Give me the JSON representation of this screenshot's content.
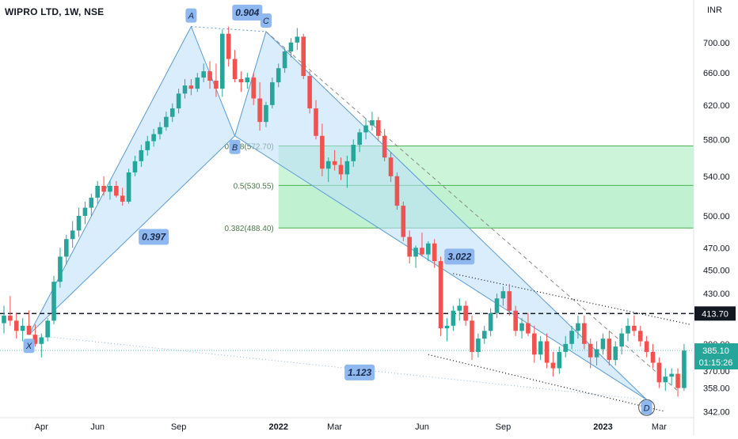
{
  "header": {
    "symbol_title": "WIPRO LTD, 1W, NSE",
    "currency": "INR"
  },
  "chart_data": {
    "type": "candlestick",
    "title": "WIPRO LTD, 1W, NSE",
    "price_axis": {
      "scale": "log",
      "unit": "INR",
      "range": [
        338,
        735
      ],
      "ticks": [
        "700.00",
        "660.00",
        "620.00",
        "580.00",
        "540.00",
        "500.00",
        "470.00",
        "450.00",
        "430.00",
        "390.00",
        "370.00",
        "358.00",
        "342.00"
      ]
    },
    "time_axis": {
      "labels": [
        {
          "label": "Apr",
          "week": 6
        },
        {
          "label": "Jun",
          "week": 15
        },
        {
          "label": "Sep",
          "week": 28
        },
        {
          "label": "2022",
          "week": 44
        },
        {
          "label": "Mar",
          "week": 53
        },
        {
          "label": "Jun",
          "week": 67
        },
        {
          "label": "Sep",
          "week": 80
        },
        {
          "label": "2023",
          "week": 96
        },
        {
          "label": "Mar",
          "week": 105
        }
      ]
    },
    "candles": [
      [
        406,
        420,
        398,
        412
      ],
      [
        412,
        428,
        404,
        408
      ],
      [
        408,
        414,
        394,
        400
      ],
      [
        400,
        410,
        392,
        404
      ],
      [
        404,
        416,
        398,
        397
      ],
      [
        397,
        405,
        388,
        390
      ],
      [
        390,
        398,
        380,
        395
      ],
      [
        395,
        410,
        392,
        408
      ],
      [
        408,
        445,
        405,
        440
      ],
      [
        440,
        470,
        435,
        462
      ],
      [
        462,
        482,
        455,
        478
      ],
      [
        478,
        495,
        470,
        486
      ],
      [
        486,
        508,
        480,
        500
      ],
      [
        500,
        514,
        492,
        508
      ],
      [
        508,
        522,
        500,
        518
      ],
      [
        518,
        535,
        512,
        530
      ],
      [
        530,
        540,
        520,
        524
      ],
      [
        524,
        536,
        516,
        530
      ],
      [
        530,
        535,
        518,
        520
      ],
      [
        520,
        528,
        510,
        514
      ],
      [
        514,
        548,
        512,
        544
      ],
      [
        544,
        562,
        540,
        556
      ],
      [
        556,
        574,
        550,
        568
      ],
      [
        568,
        584,
        562,
        578
      ],
      [
        578,
        592,
        572,
        586
      ],
      [
        586,
        600,
        580,
        594
      ],
      [
        594,
        612,
        590,
        606
      ],
      [
        606,
        622,
        600,
        616
      ],
      [
        616,
        640,
        610,
        634
      ],
      [
        634,
        652,
        628,
        644
      ],
      [
        644,
        652,
        632,
        640
      ],
      [
        640,
        660,
        636,
        654
      ],
      [
        654,
        672,
        648,
        662
      ],
      [
        662,
        675,
        640,
        650
      ],
      [
        650,
        672,
        630,
        640
      ],
      [
        640,
        718,
        630,
        712
      ],
      [
        712,
        722,
        668,
        678
      ],
      [
        678,
        690,
        648,
        652
      ],
      [
        652,
        662,
        636,
        648
      ],
      [
        648,
        660,
        640,
        654
      ],
      [
        654,
        660,
        620,
        628
      ],
      [
        628,
        648,
        590,
        600
      ],
      [
        600,
        624,
        594,
        620
      ],
      [
        620,
        654,
        616,
        648
      ],
      [
        648,
        672,
        642,
        666
      ],
      [
        666,
        692,
        660,
        688
      ],
      [
        688,
        706,
        680,
        700
      ],
      [
        700,
        720,
        690,
        708
      ],
      [
        708,
        712,
        652,
        656
      ],
      [
        656,
        662,
        610,
        616
      ],
      [
        616,
        626,
        580,
        584
      ],
      [
        584,
        598,
        540,
        548
      ],
      [
        548,
        560,
        534,
        556
      ],
      [
        556,
        568,
        546,
        552
      ],
      [
        552,
        560,
        536,
        542
      ],
      [
        542,
        562,
        528,
        556
      ],
      [
        556,
        580,
        550,
        574
      ],
      [
        574,
        592,
        566,
        588
      ],
      [
        588,
        604,
        580,
        596
      ],
      [
        596,
        612,
        590,
        602
      ],
      [
        602,
        606,
        578,
        584
      ],
      [
        584,
        592,
        556,
        560
      ],
      [
        560,
        566,
        534,
        540
      ],
      [
        540,
        544,
        506,
        510
      ],
      [
        510,
        514,
        476,
        480
      ],
      [
        480,
        486,
        456,
        462
      ],
      [
        462,
        472,
        452,
        470
      ],
      [
        470,
        484,
        462,
        464
      ],
      [
        464,
        476,
        458,
        474
      ],
      [
        474,
        478,
        452,
        458
      ],
      [
        458,
        462,
        396,
        402
      ],
      [
        402,
        410,
        392,
        404
      ],
      [
        404,
        420,
        400,
        416
      ],
      [
        416,
        426,
        408,
        420
      ],
      [
        420,
        424,
        404,
        408
      ],
      [
        408,
        412,
        378,
        384
      ],
      [
        384,
        398,
        380,
        394
      ],
      [
        394,
        404,
        390,
        400
      ],
      [
        400,
        418,
        396,
        414
      ],
      [
        414,
        430,
        410,
        426
      ],
      [
        426,
        436,
        420,
        432
      ],
      [
        432,
        438,
        412,
        416
      ],
      [
        416,
        420,
        396,
        400
      ],
      [
        400,
        410,
        394,
        406
      ],
      [
        406,
        414,
        396,
        398
      ],
      [
        398,
        404,
        376,
        382
      ],
      [
        382,
        396,
        378,
        392
      ],
      [
        392,
        398,
        372,
        376
      ],
      [
        376,
        384,
        366,
        372
      ],
      [
        372,
        388,
        368,
        384
      ],
      [
        384,
        396,
        380,
        390
      ],
      [
        390,
        404,
        386,
        400
      ],
      [
        400,
        412,
        394,
        406
      ],
      [
        406,
        412,
        386,
        390
      ],
      [
        390,
        394,
        372,
        380
      ],
      [
        380,
        392,
        374,
        386
      ],
      [
        386,
        398,
        382,
        394
      ],
      [
        394,
        400,
        374,
        378
      ],
      [
        378,
        392,
        374,
        388
      ],
      [
        388,
        402,
        382,
        398
      ],
      [
        398,
        410,
        392,
        404
      ],
      [
        404,
        412,
        396,
        400
      ],
      [
        400,
        404,
        388,
        392
      ],
      [
        392,
        396,
        380,
        384
      ],
      [
        384,
        390,
        372,
        376
      ],
      [
        376,
        380,
        358,
        362
      ],
      [
        362,
        372,
        356,
        366
      ],
      [
        366,
        372,
        360,
        368
      ],
      [
        368,
        372,
        352,
        358
      ],
      [
        358,
        390,
        356,
        385
      ]
    ],
    "harmonic_pattern": {
      "points": [
        {
          "label": "X",
          "week": 4,
          "price": 397
        },
        {
          "label": "A",
          "week": 30,
          "price": 722
        },
        {
          "label": "B",
          "week": 37,
          "price": 584
        },
        {
          "label": "C",
          "week": 42,
          "price": 715
        },
        {
          "label": "D",
          "week": 103,
          "price": 350
        }
      ],
      "ratios": [
        {
          "label": "0.397",
          "between": "X-A-B"
        },
        {
          "label": "0.904",
          "between": "A-B-C"
        },
        {
          "label": "3.022",
          "between": "B-C-D"
        },
        {
          "label": "1.123",
          "between": "X-D"
        }
      ]
    },
    "fib_retracement": [
      {
        "label": "0.618(572.70)",
        "price": 572.7
      },
      {
        "label": "0.5(530.55)",
        "price": 530.55
      },
      {
        "label": "0.382(488.40)",
        "price": 488.4
      }
    ],
    "horizontal_line": {
      "price": 413.7,
      "label": "413.70"
    },
    "current_price": {
      "price": 385.1,
      "label": "385.10",
      "countdown": "01:15:26"
    },
    "colors": {
      "up": "#26a69a",
      "down": "#ef5350",
      "pattern_fill": "#bbdefb",
      "pattern_line": "#5b9bd5",
      "fib_fill": "#b9f0cc",
      "fib_line": "#4caf50",
      "label_bg": "#8eb8ef"
    }
  }
}
